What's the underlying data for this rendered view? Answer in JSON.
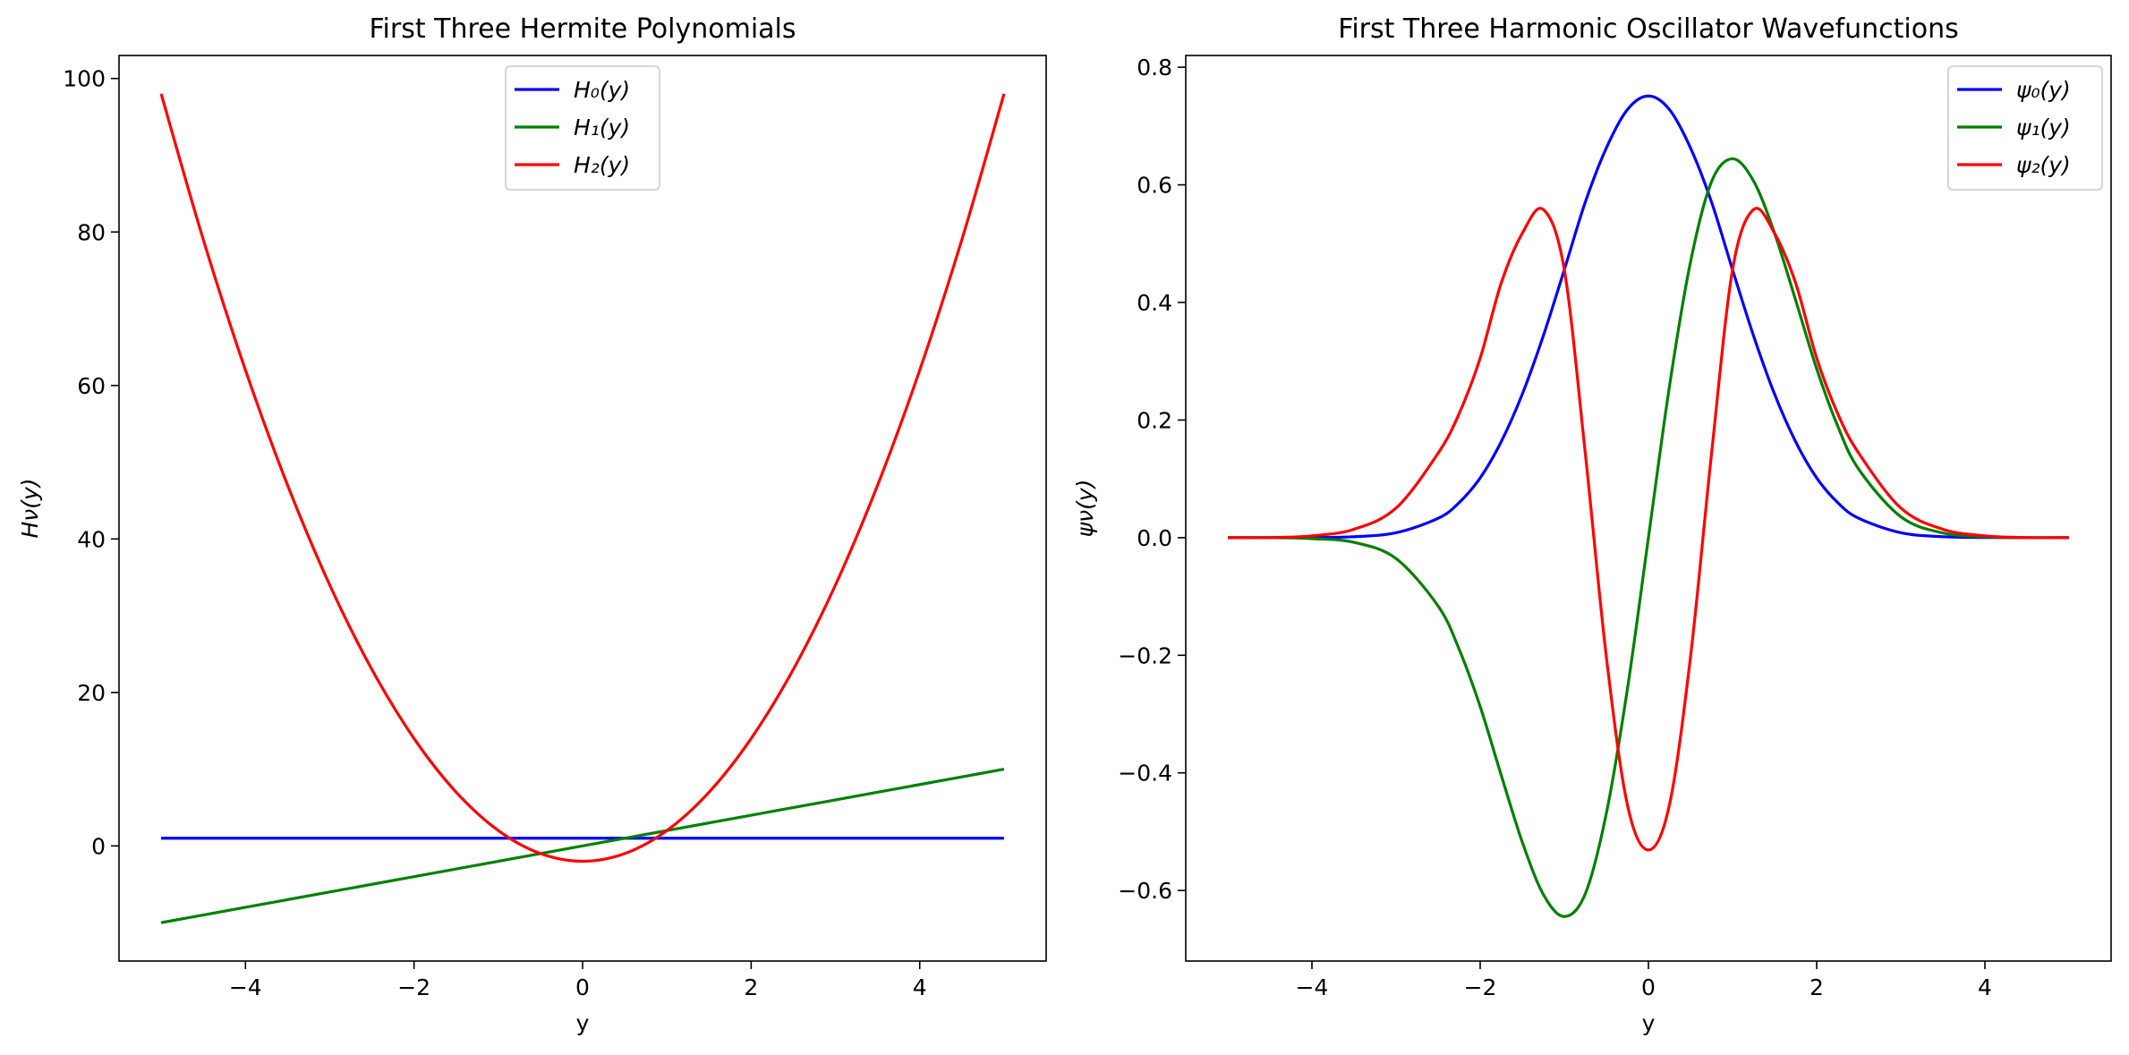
{
  "chart_data": [
    {
      "type": "line",
      "title": "First Three Hermite Polynomials",
      "xlabel": "y",
      "ylabel": "Hν(y)",
      "xlim": [
        -5.5,
        5.5
      ],
      "ylim": [
        -15,
        103
      ],
      "x_ticks": [
        -4,
        -2,
        0,
        2,
        4
      ],
      "y_ticks": [
        0,
        20,
        40,
        60,
        80,
        100
      ],
      "x_tick_labels": [
        "−4",
        "−2",
        "0",
        "2",
        "4"
      ],
      "y_tick_labels": [
        "0",
        "20",
        "40",
        "60",
        "80",
        "100"
      ],
      "legend_position": "top-center",
      "x": [
        -5,
        -4.5,
        -4,
        -3.5,
        -3,
        -2.5,
        -2,
        -1.5,
        -1,
        -0.5,
        0,
        0.5,
        1,
        1.5,
        2,
        2.5,
        3,
        3.5,
        4,
        4.5,
        5
      ],
      "series": [
        {
          "name": "H₀(y)",
          "color": "#0000ff",
          "values": [
            1,
            1,
            1,
            1,
            1,
            1,
            1,
            1,
            1,
            1,
            1,
            1,
            1,
            1,
            1,
            1,
            1,
            1,
            1,
            1,
            1
          ]
        },
        {
          "name": "H₁(y)",
          "color": "#008000",
          "values": [
            -10,
            -9,
            -8,
            -7,
            -6,
            -5,
            -4,
            -3,
            -2,
            -1,
            0,
            1,
            2,
            3,
            4,
            5,
            6,
            7,
            8,
            9,
            10
          ]
        },
        {
          "name": "H₂(y)",
          "color": "#ff0000",
          "values": [
            98,
            79,
            62,
            47,
            34,
            23,
            14,
            7,
            2,
            -1,
            -2,
            -1,
            2,
            7,
            14,
            23,
            34,
            47,
            62,
            79,
            98
          ]
        }
      ]
    },
    {
      "type": "line",
      "title": "First Three Harmonic Oscillator Wavefunctions",
      "xlabel": "y",
      "ylabel": "ψν(y)",
      "xlim": [
        -5.5,
        5.5
      ],
      "ylim": [
        -0.72,
        0.82
      ],
      "x_ticks": [
        -4,
        -2,
        0,
        2,
        4
      ],
      "y_ticks": [
        -0.6,
        -0.4,
        -0.2,
        0.0,
        0.2,
        0.4,
        0.6,
        0.8
      ],
      "x_tick_labels": [
        "−4",
        "−2",
        "0",
        "2",
        "4"
      ],
      "y_tick_labels": [
        "−0.6",
        "−0.4",
        "−0.2",
        "0.0",
        "0.2",
        "0.4",
        "0.6",
        "0.8"
      ],
      "legend_position": "top-right",
      "x": [
        -5,
        -4.5,
        -4,
        -3.5,
        -3,
        -2.5,
        -2.25,
        -2,
        -1.75,
        -1.5,
        -1.25,
        -1,
        -0.75,
        -0.5,
        -0.25,
        0,
        0.25,
        0.5,
        0.75,
        1,
        1.25,
        1.5,
        1.75,
        2,
        2.25,
        2.5,
        3,
        3.5,
        4,
        4.5,
        5
      ],
      "series": [
        {
          "name": "ψ₀(y)",
          "color": "#0000ff",
          "values": [
            0.0,
            0.0,
            0.0003,
            0.0016,
            0.0084,
            0.0329,
            0.0596,
            0.1016,
            0.1632,
            0.2439,
            0.3431,
            0.4556,
            0.5708,
            0.6628,
            0.728,
            0.7511,
            0.728,
            0.6628,
            0.5708,
            0.4556,
            0.3431,
            0.2439,
            0.1632,
            0.1016,
            0.0596,
            0.0329,
            0.0084,
            0.0016,
            0.0003,
            0.0,
            0.0
          ]
        },
        {
          "name": "ψ₁(y)",
          "color": "#008000",
          "values": [
            0.0,
            -0.0,
            -0.0017,
            -0.008,
            -0.0356,
            -0.1163,
            -0.1898,
            -0.2873,
            -0.4039,
            -0.5175,
            -0.6065,
            -0.6443,
            -0.6054,
            -0.4687,
            -0.2574,
            0.0,
            0.2574,
            0.4687,
            0.6054,
            0.6443,
            0.6065,
            0.5175,
            0.4039,
            0.2873,
            0.1898,
            0.1163,
            0.0356,
            0.008,
            0.0017,
            0.0,
            0.0
          ]
        },
        {
          "name": "ψ₂(y)",
          "color": "#ff0000",
          "values": [
            0.0,
            0.0001,
            0.0031,
            0.0143,
            0.0504,
            0.1437,
            0.211,
            0.3054,
            0.433,
            0.5175,
            0.5581,
            0.4557,
            0.1427,
            -0.203,
            -0.4543,
            -0.5311,
            -0.4543,
            -0.203,
            0.1427,
            0.4557,
            0.5581,
            0.5175,
            0.433,
            0.3054,
            0.211,
            0.1437,
            0.0504,
            0.0143,
            0.0031,
            0.0001,
            0.0
          ]
        }
      ]
    }
  ]
}
